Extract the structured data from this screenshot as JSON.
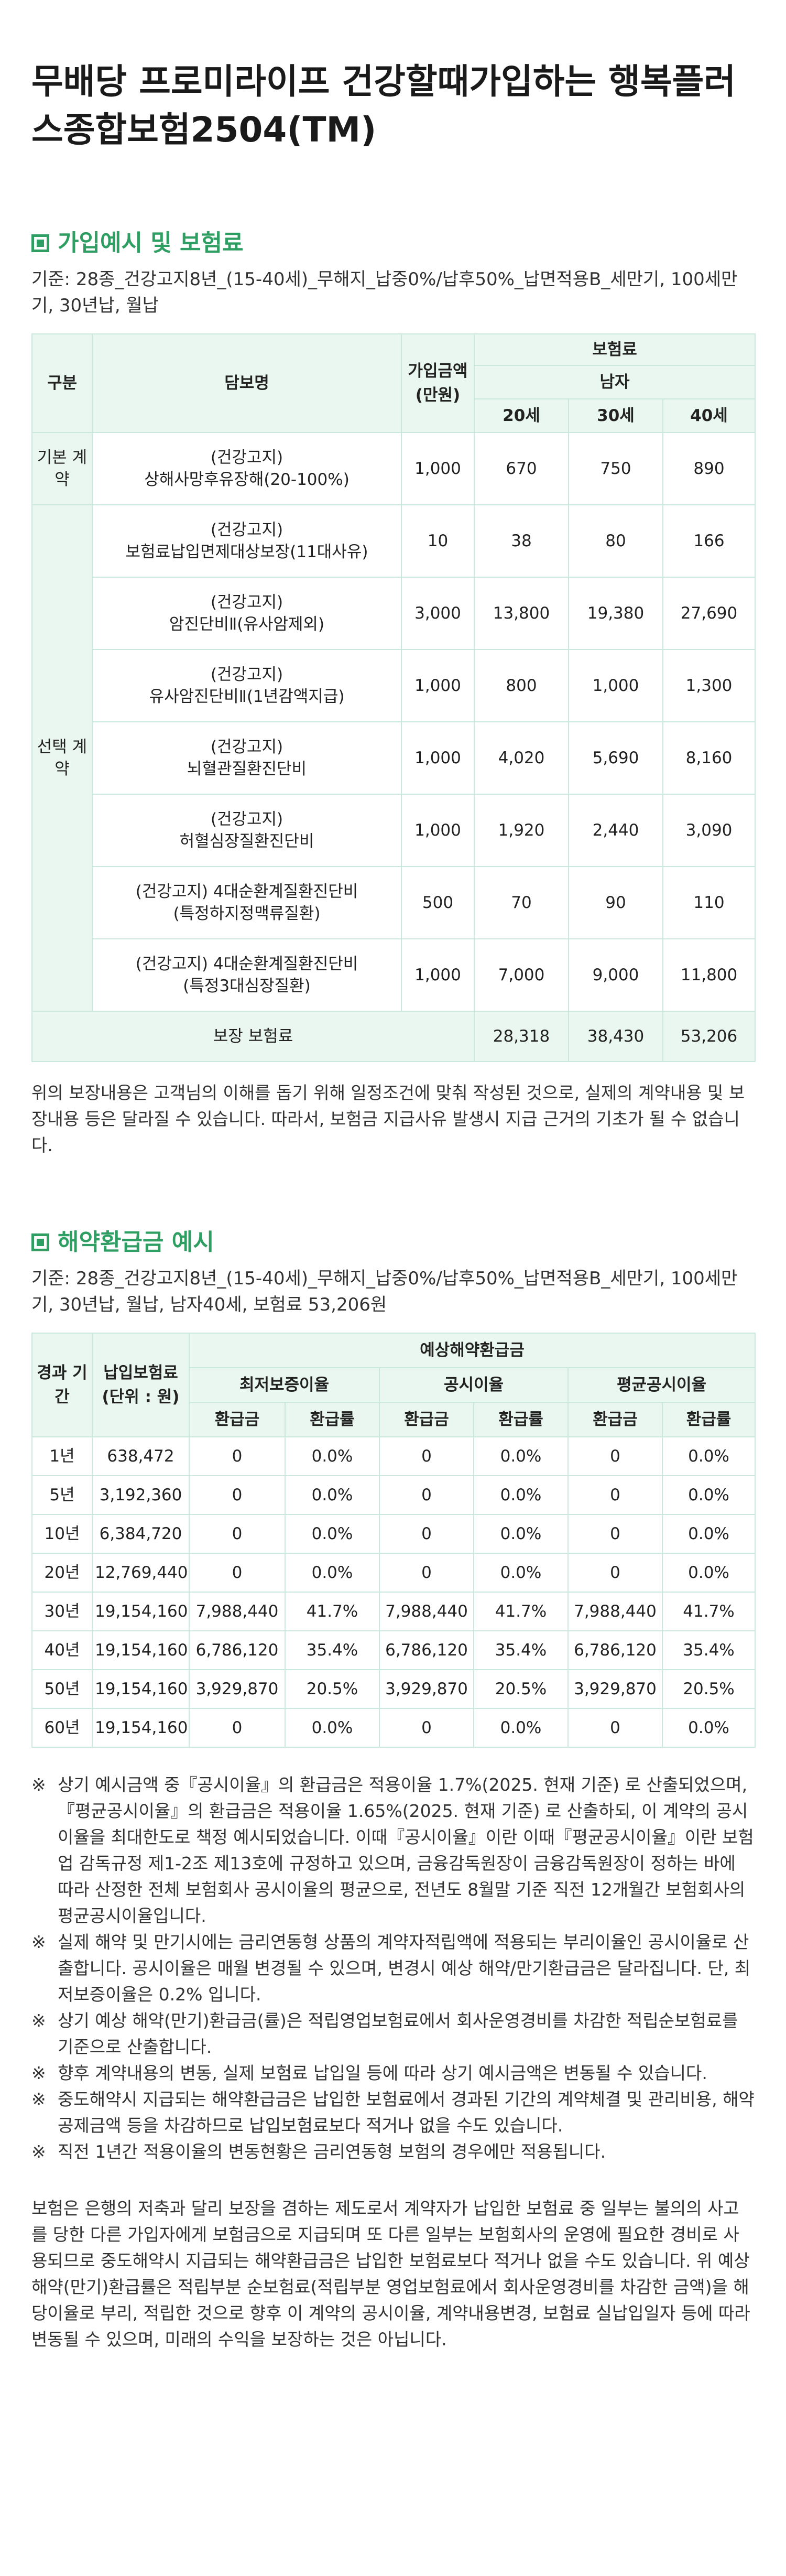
{
  "page_title": "무배당 프로미라이프 건강할때가입하는 행복플러스종합보험2504(TM)",
  "section1": {
    "heading": "가입예시 및 보험료",
    "basis": "기준: 28종_건강고지8년_(15-40세)_무해지_납중0%/납후50%_납면적용B_세만기, 100세만기, 30년납, 월납",
    "headers": {
      "division": "구분",
      "coverage": "담보명",
      "amount": "가입금액 (만원)",
      "premium": "보험료",
      "male": "남자",
      "ages": [
        "20세",
        "30세",
        "40세"
      ]
    },
    "groups": [
      {
        "label": "기본 계약",
        "rows": [
          {
            "name": [
              "(건강고지)",
              "상해사망후유장해(20-100%)"
            ],
            "amount": "1,000",
            "values": [
              "670",
              "750",
              "890"
            ]
          }
        ]
      },
      {
        "label": "선택 계약",
        "rows": [
          {
            "name": [
              "(건강고지)",
              "보험료납입면제대상보장(11대사유)"
            ],
            "amount": "10",
            "values": [
              "38",
              "80",
              "166"
            ]
          },
          {
            "name": [
              "(건강고지)",
              "암진단비Ⅱ(유사암제외)"
            ],
            "amount": "3,000",
            "values": [
              "13,800",
              "19,380",
              "27,690"
            ]
          },
          {
            "name": [
              "(건강고지)",
              "유사암진단비Ⅱ(1년감액지급)"
            ],
            "amount": "1,000",
            "values": [
              "800",
              "1,000",
              "1,300"
            ]
          },
          {
            "name": [
              "(건강고지)",
              "뇌혈관질환진단비"
            ],
            "amount": "1,000",
            "values": [
              "4,020",
              "5,690",
              "8,160"
            ]
          },
          {
            "name": [
              "(건강고지)",
              "허혈심장질환진단비"
            ],
            "amount": "1,000",
            "values": [
              "1,920",
              "2,440",
              "3,090"
            ]
          },
          {
            "name": [
              "(건강고지) 4대순환계질환진단비",
              "(특정하지정맥류질환)"
            ],
            "amount": "500",
            "values": [
              "70",
              "90",
              "110"
            ]
          },
          {
            "name": [
              "(건강고지) 4대순환계질환진단비",
              "(특정3대심장질환)"
            ],
            "amount": "1,000",
            "values": [
              "7,000",
              "9,000",
              "11,800"
            ]
          }
        ]
      }
    ],
    "total": {
      "label": "보장 보험료",
      "values": [
        "28,318",
        "38,430",
        "53,206"
      ]
    },
    "note": "위의 보장내용은 고객님의 이해를 돕기 위해 일정조건에 맞춰 작성된 것으로, 실제의 계약내용 및 보장내용 등은 달라질 수 있습니다. 따라서, 보험금 지급사유 발생시 지급 근거의 기초가 될 수 없습니다."
  },
  "section2": {
    "heading": "해약환급금 예시",
    "basis": "기준: 28종_건강고지8년_(15-40세)_무해지_납중0%/납후50%_납면적용B_세만기, 100세만기, 30년납, 월납, 남자40세, 보험료 53,206원",
    "headers": {
      "period": "경과 기간",
      "paid_line1": "납입보험료",
      "paid_line2": "(단위 : 원)",
      "expected": "예상해약환급금",
      "rate_groups": [
        "최저보증이율",
        "공시이율",
        "평균공시이율"
      ],
      "refund": "환급금",
      "ratio": "환급률"
    },
    "rows": [
      {
        "period": "1년",
        "paid": "638,472",
        "cells": [
          "0",
          "0.0%",
          "0",
          "0.0%",
          "0",
          "0.0%"
        ]
      },
      {
        "period": "5년",
        "paid": "3,192,360",
        "cells": [
          "0",
          "0.0%",
          "0",
          "0.0%",
          "0",
          "0.0%"
        ]
      },
      {
        "period": "10년",
        "paid": "6,384,720",
        "cells": [
          "0",
          "0.0%",
          "0",
          "0.0%",
          "0",
          "0.0%"
        ]
      },
      {
        "period": "20년",
        "paid": "12,769,440",
        "cells": [
          "0",
          "0.0%",
          "0",
          "0.0%",
          "0",
          "0.0%"
        ]
      },
      {
        "period": "30년",
        "paid": "19,154,160",
        "cells": [
          "7,988,440",
          "41.7%",
          "7,988,440",
          "41.7%",
          "7,988,440",
          "41.7%"
        ]
      },
      {
        "period": "40년",
        "paid": "19,154,160",
        "cells": [
          "6,786,120",
          "35.4%",
          "6,786,120",
          "35.4%",
          "6,786,120",
          "35.4%"
        ]
      },
      {
        "period": "50년",
        "paid": "19,154,160",
        "cells": [
          "3,929,870",
          "20.5%",
          "3,929,870",
          "20.5%",
          "3,929,870",
          "20.5%"
        ]
      },
      {
        "period": "60년",
        "paid": "19,154,160",
        "cells": [
          "0",
          "0.0%",
          "0",
          "0.0%",
          "0",
          "0.0%"
        ]
      }
    ],
    "bullet_mark": "※",
    "bullets": [
      "상기 예시금액 중『공시이율』의 환급금은 적용이율 1.7%(2025. 현재 기준) 로 산출되었으며,『평균공시이율』의 환급금은 적용이율 1.65%(2025. 현재 기준) 로 산출하되, 이 계약의 공시이율을 최대한도로 책정 예시되었습니다. 이때『공시이율』이란 이때『평균공시이율』이란 보험업 감독규정 제1-2조 제13호에 규정하고 있으며, 금융감독원장이 금융감독원장이 정하는 바에 따라 산정한 전체 보험회사 공시이율의 평균으로, 전년도 8월말 기준 직전 12개월간 보험회사의 평균공시이율입니다.",
      "실제 해약 및 만기시에는 금리연동형 상품의 계약자적립액에 적용되는 부리이율인 공시이율로 산출합니다. 공시이율은 매월 변경될 수 있으며, 변경시 예상 해약/만기환급금은 달라집니다. 단, 최저보증이율은 0.2% 입니다.",
      "상기 예상 해약(만기)환급금(률)은 적립영업보험료에서 회사운영경비를 차감한 적립순보험료를 기준으로 산출합니다.",
      "향후 계약내용의 변동, 실제 보험료 납입일 등에 따라 상기 예시금액은 변동될 수 있습니다.",
      "중도해약시 지급되는 해약환급금은 납입한 보험료에서 경과된 기간의 계약체결 및 관리비용, 해약공제금액 등을 차감하므로 납입보험료보다 적거나 없을 수도 있습니다.",
      "직전 1년간 적용이율의 변동현황은 금리연동형 보험의 경우에만 적용됩니다."
    ],
    "closing": "보험은 은행의 저축과 달리 보장을 겸하는 제도로서 계약자가 납입한 보험료 중 일부는 불의의 사고를 당한 다른 가입자에게 보험금으로 지급되며 또 다른 일부는 보험회사의 운영에 필요한 경비로 사용되므로 중도해약시 지급되는 해약환급금은 납입한 보험료보다 적거나 없을 수도 있습니다. 위 예상해약(만기)환급률은 적립부분 순보험료(적립부분 영업보험료에서 회사운영경비를 차감한 금액)을 해당이율로 부리, 적립한 것으로 향후 이 계약의 공시이율, 계약내용변경, 보험료 실납입일자 등에 따라 변동될 수 있으며, 미래의 수익을 보장하는 것은 아닙니다."
  }
}
